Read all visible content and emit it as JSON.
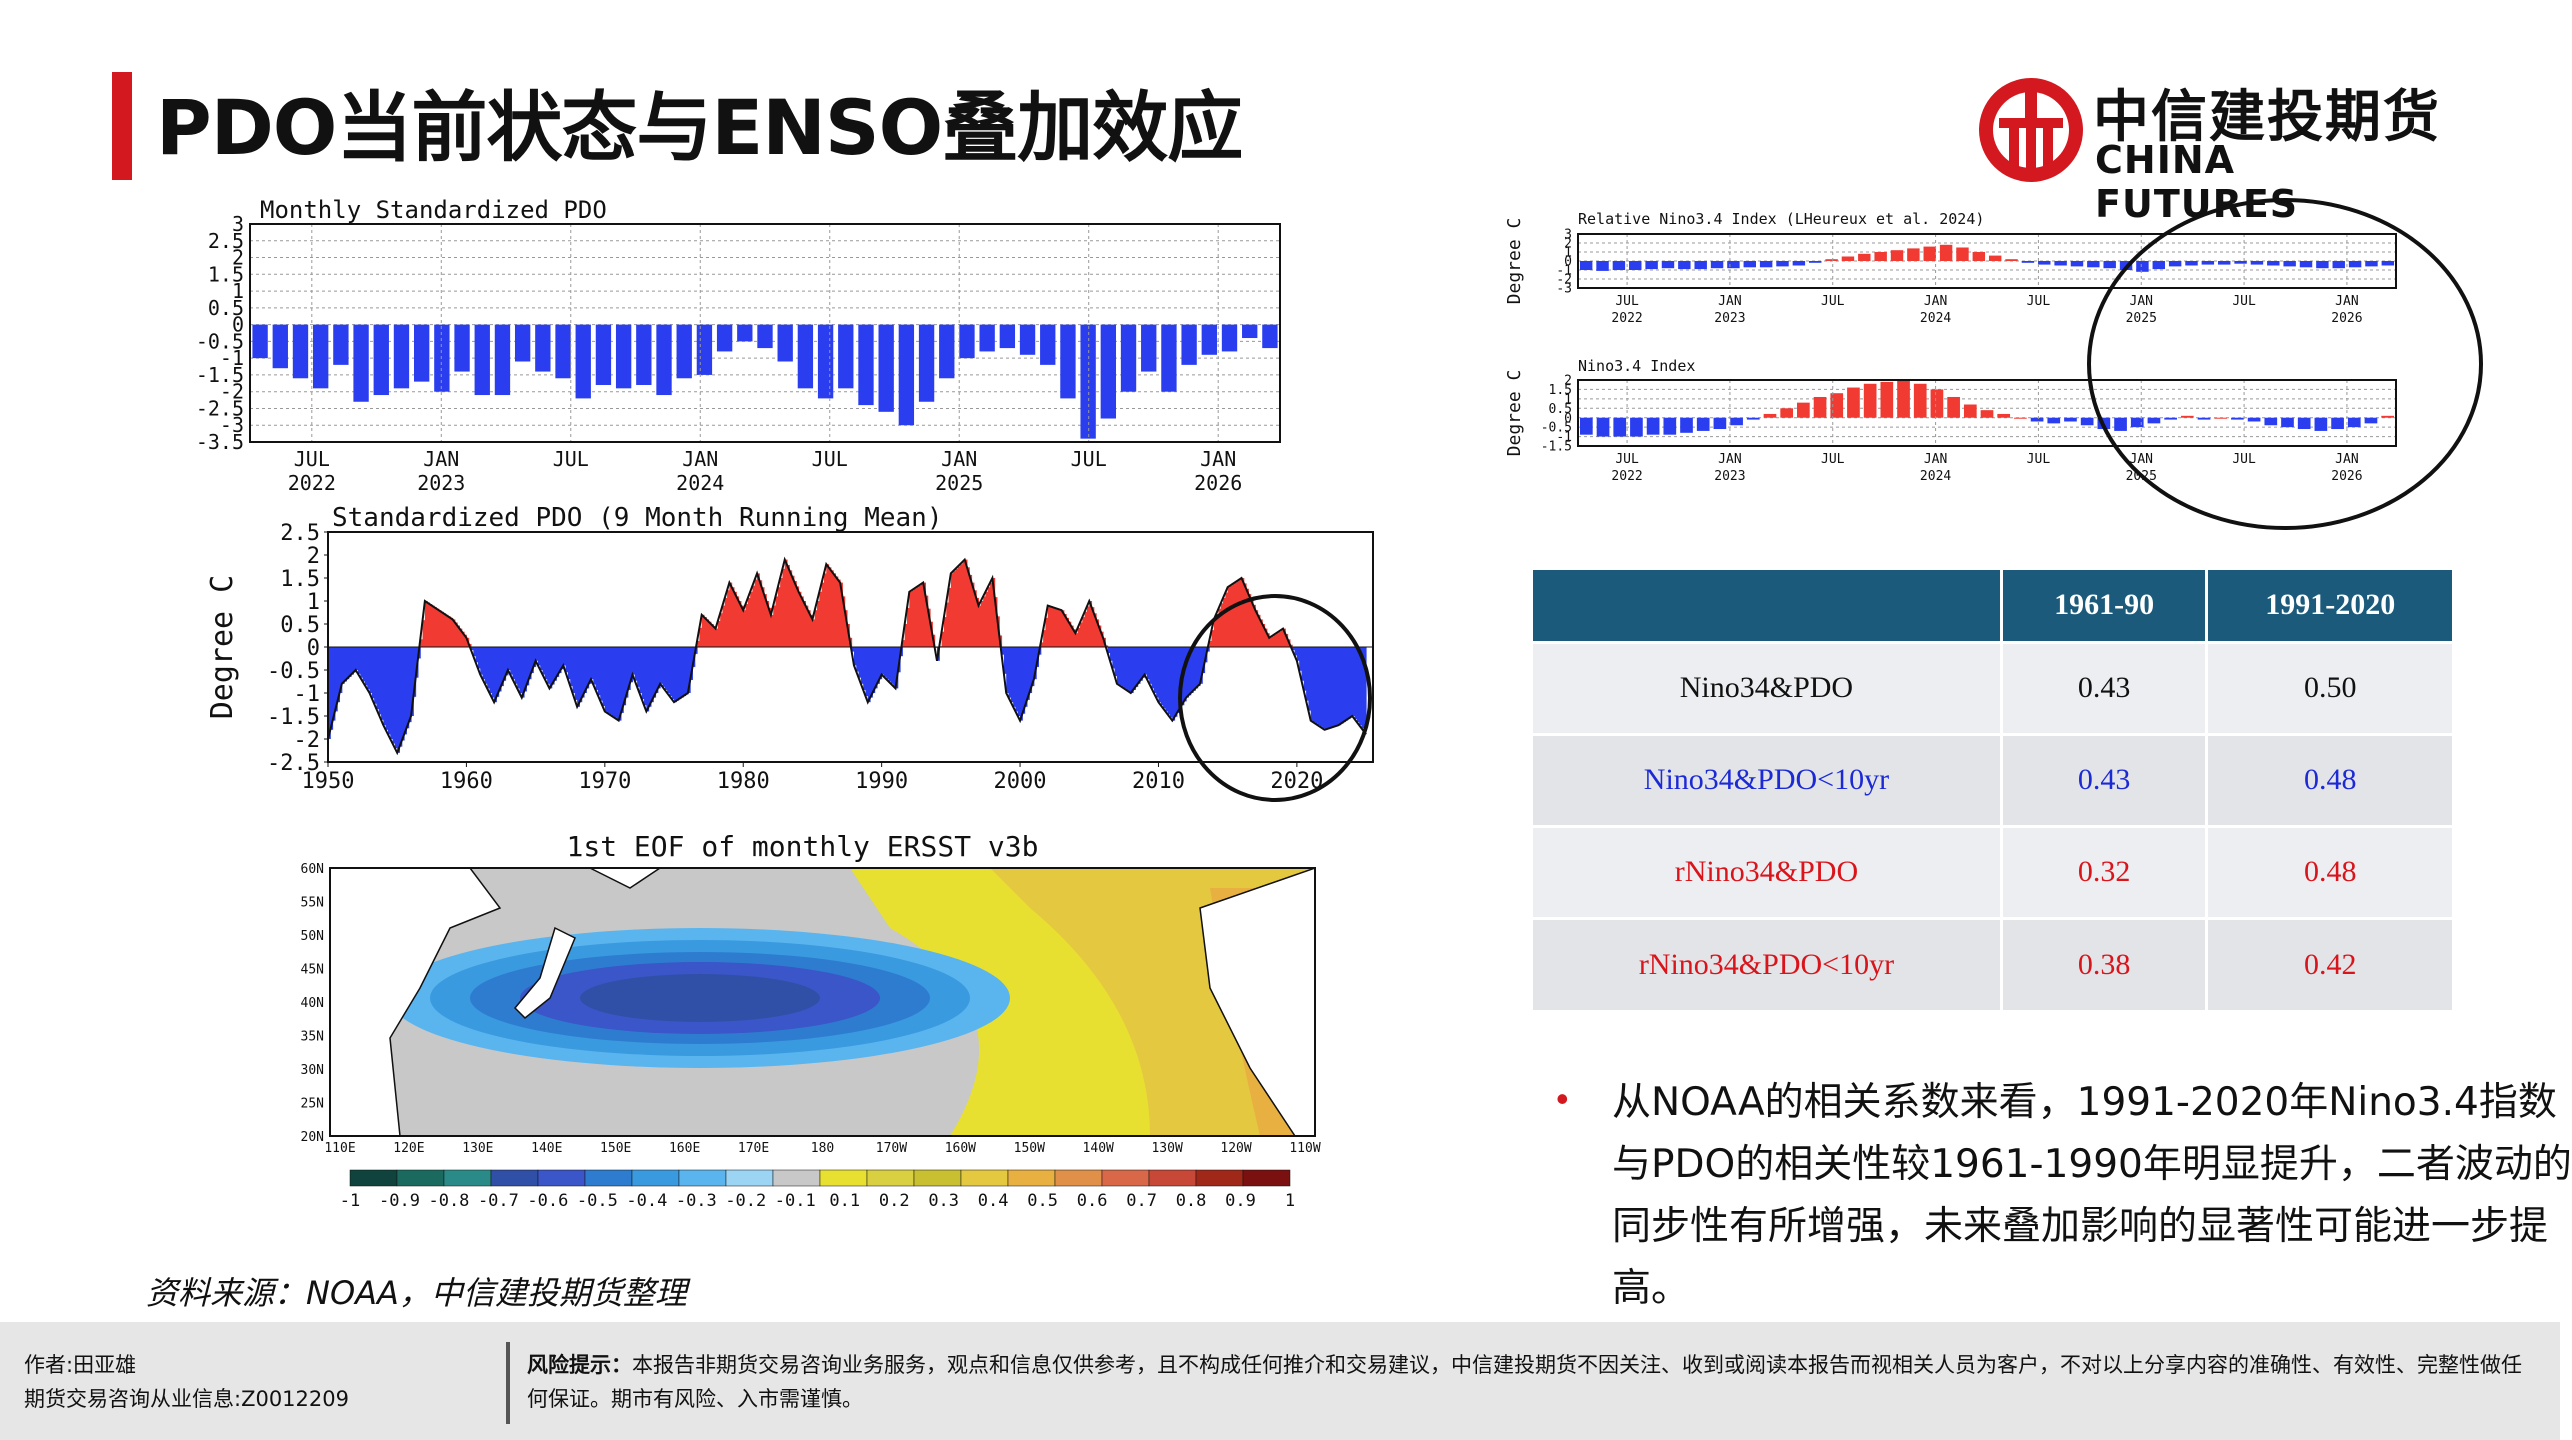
{
  "header": {
    "title": "PDO当前状态与ENSO叠加效应",
    "logo_cn": "中信建投期货",
    "logo_en": "CHINA FUTURES",
    "logo_icon": "citic-logo-icon",
    "accent_color": "#d3191f"
  },
  "chart_data": [
    {
      "type": "bar",
      "title": "Monthly Standardized PDO",
      "ylim": [
        -3.5,
        3
      ],
      "yticks": [
        "3",
        "2.5",
        "2",
        "1.5",
        "1",
        "0.5",
        "0",
        "-0.5",
        "-1",
        "-1.5",
        "-2",
        "-2.5",
        "-3",
        "-3.5"
      ],
      "xticks": [
        {
          "label": "JUL",
          "year": "2022"
        },
        {
          "label": "JAN",
          "year": "2023"
        },
        {
          "label": "JUL",
          "year": ""
        },
        {
          "label": "JAN",
          "year": "2024"
        },
        {
          "label": "JUL",
          "year": ""
        },
        {
          "label": "JAN",
          "year": "2025"
        },
        {
          "label": "JUL",
          "year": ""
        },
        {
          "label": "JAN",
          "year": "2026"
        }
      ],
      "values": [
        -1.0,
        -1.3,
        -1.6,
        -1.9,
        -1.2,
        -2.3,
        -2.1,
        -1.9,
        -1.7,
        -2.0,
        -1.4,
        -2.1,
        -2.1,
        -1.1,
        -1.4,
        -1.6,
        -2.2,
        -1.8,
        -1.9,
        -1.8,
        -2.1,
        -1.6,
        -1.5,
        -0.8,
        -0.5,
        -0.7,
        -1.1,
        -1.9,
        -2.2,
        -1.9,
        -2.4,
        -2.6,
        -3.0,
        -2.3,
        -1.6,
        -1.0,
        -0.8,
        -0.7,
        -0.9,
        -1.2,
        -2.2,
        -3.4,
        -2.8,
        -2.0,
        -1.4,
        -2.0,
        -1.2,
        -0.9,
        -0.8,
        -0.4,
        -0.7
      ],
      "bar_color": "#2a3ef0"
    },
    {
      "type": "area",
      "title": "Standardized PDO (9 Month Running Mean)",
      "ylabel": "Degree C",
      "ylim": [
        -2.5,
        2.5
      ],
      "yticks": [
        "2.5",
        "2",
        "1.5",
        "1",
        "0.5",
        "0",
        "-0.5",
        "-1",
        "-1.5",
        "-2",
        "-2.5"
      ],
      "xticks": [
        "1950",
        "1960",
        "1970",
        "1980",
        "1990",
        "2000",
        "2010",
        "2020"
      ],
      "x": [
        1950,
        1951,
        1952,
        1953,
        1954,
        1955,
        1956,
        1957,
        1958,
        1959,
        1960,
        1961,
        1962,
        1963,
        1964,
        1965,
        1966,
        1967,
        1968,
        1969,
        1970,
        1971,
        1972,
        1973,
        1974,
        1975,
        1976,
        1977,
        1978,
        1979,
        1980,
        1981,
        1982,
        1983,
        1984,
        1985,
        1986,
        1987,
        1988,
        1989,
        1990,
        1991,
        1992,
        1993,
        1994,
        1995,
        1996,
        1997,
        1998,
        1999,
        2000,
        2001,
        2002,
        2003,
        2004,
        2005,
        2006,
        2007,
        2008,
        2009,
        2010,
        2011,
        2012,
        2013,
        2014,
        2015,
        2016,
        2017,
        2018,
        2019,
        2020,
        2021,
        2022,
        2023,
        2024,
        2025
      ],
      "values": [
        -2.0,
        -0.8,
        -0.5,
        -1.0,
        -1.7,
        -2.3,
        -1.5,
        1.0,
        0.8,
        0.6,
        0.2,
        -0.6,
        -1.2,
        -0.5,
        -1.1,
        -0.3,
        -0.9,
        -0.4,
        -1.3,
        -0.7,
        -1.4,
        -1.6,
        -0.6,
        -1.4,
        -0.8,
        -1.2,
        -1.0,
        0.7,
        0.4,
        1.4,
        0.8,
        1.6,
        0.7,
        1.9,
        1.2,
        0.6,
        1.8,
        1.4,
        -0.4,
        -1.2,
        -0.6,
        -0.9,
        1.2,
        1.4,
        -0.3,
        1.6,
        1.9,
        0.9,
        1.5,
        -1.0,
        -1.6,
        -0.7,
        0.9,
        0.8,
        0.3,
        1.0,
        0.2,
        -0.8,
        -1.0,
        -0.6,
        -1.2,
        -1.6,
        -1.1,
        -0.8,
        0.6,
        1.3,
        1.5,
        0.8,
        0.2,
        0.4,
        -0.3,
        -1.6,
        -1.8,
        -1.7,
        -1.5,
        -1.9
      ],
      "positive_color": "#f03a32",
      "negative_color": "#2a3ef0"
    },
    {
      "type": "heatmap",
      "title": "1st EOF of monthly ERSST v3b",
      "lat_ticks": [
        "60N",
        "55N",
        "50N",
        "45N",
        "40N",
        "35N",
        "30N",
        "25N",
        "20N"
      ],
      "lon_ticks": [
        "110E",
        "120E",
        "130E",
        "140E",
        "150E",
        "160E",
        "170E",
        "180",
        "170W",
        "160W",
        "150W",
        "140W",
        "130W",
        "120W",
        "110W"
      ],
      "colorbar_labels": [
        "-1",
        "-0.9",
        "-0.8",
        "-0.7",
        "-0.6",
        "-0.5",
        "-0.4",
        "-0.3",
        "-0.2",
        "-0.1",
        "0.1",
        "0.2",
        "0.3",
        "0.4",
        "0.5",
        "0.6",
        "0.7",
        "0.8",
        "0.9",
        "1"
      ],
      "colorbar_colors": [
        "#10433d",
        "#1a6a60",
        "#2a8a88",
        "#3050a8",
        "#3a56c8",
        "#2e7ccf",
        "#3a9ae0",
        "#5ab5ee",
        "#9cd4f4",
        "#c8c8c8",
        "#e8e030",
        "#d8d040",
        "#c8c030",
        "#e4c840",
        "#e8b040",
        "#e09048",
        "#d86848",
        "#c84838",
        "#a02818",
        "#7a1010"
      ]
    },
    {
      "type": "bar",
      "title": "Relative Nino3.4 Index (LHeureux et al. 2024)",
      "ylabel": "Degree C",
      "ylim": [
        -3,
        3
      ],
      "yticks": [
        "3",
        "2",
        "1",
        "0",
        "-1",
        "-2",
        "-3"
      ],
      "xticks": [
        {
          "label": "JUL",
          "year": "2022"
        },
        {
          "label": "JAN",
          "year": "2023"
        },
        {
          "label": "JUL",
          "year": ""
        },
        {
          "label": "JAN",
          "year": "2024"
        },
        {
          "label": "JUL",
          "year": ""
        },
        {
          "label": "JAN",
          "year": "2025"
        },
        {
          "label": "JUL",
          "year": ""
        },
        {
          "label": "JAN",
          "year": "2026"
        }
      ],
      "values": [
        -1.0,
        -1.1,
        -1.0,
        -1.0,
        -0.9,
        -0.8,
        -0.9,
        -0.9,
        -0.8,
        -0.8,
        -0.7,
        -0.7,
        -0.6,
        -0.5,
        -0.2,
        0.2,
        0.5,
        0.8,
        1.0,
        1.2,
        1.4,
        1.6,
        1.8,
        1.5,
        1.0,
        0.6,
        0.2,
        -0.2,
        -0.4,
        -0.5,
        -0.6,
        -0.7,
        -0.8,
        -1.0,
        -1.2,
        -0.9,
        -0.6,
        -0.5,
        -0.4,
        -0.4,
        -0.3,
        -0.4,
        -0.5,
        -0.6,
        -0.7,
        -0.8,
        -0.8,
        -0.7,
        -0.6,
        -0.5
      ],
      "positive_color": "#f03a32",
      "negative_color": "#2a3ef0"
    },
    {
      "type": "bar",
      "title": "Nino3.4 Index",
      "ylabel": "Degree C",
      "ylim": [
        -1.5,
        2
      ],
      "yticks": [
        "2",
        "1.5",
        "1",
        "0.5",
        "0",
        "-0.5",
        "-1",
        "-1.5"
      ],
      "xticks": [
        {
          "label": "JUL",
          "year": "2022"
        },
        {
          "label": "JAN",
          "year": "2023"
        },
        {
          "label": "JUL",
          "year": ""
        },
        {
          "label": "JAN",
          "year": "2024"
        },
        {
          "label": "JUL",
          "year": ""
        },
        {
          "label": "JAN",
          "year": "2025"
        },
        {
          "label": "JUL",
          "year": ""
        },
        {
          "label": "JAN",
          "year": "2026"
        }
      ],
      "values": [
        -0.9,
        -1.0,
        -1.0,
        -1.0,
        -0.9,
        -0.9,
        -0.8,
        -0.7,
        -0.6,
        -0.4,
        -0.1,
        0.2,
        0.5,
        0.8,
        1.1,
        1.3,
        1.6,
        1.8,
        1.9,
        2.0,
        1.8,
        1.5,
        1.1,
        0.7,
        0.4,
        0.2,
        0.0,
        -0.2,
        -0.3,
        -0.2,
        -0.4,
        -0.6,
        -0.7,
        -0.5,
        -0.3,
        -0.1,
        0.1,
        -0.1,
        0.0,
        -0.1,
        -0.2,
        -0.4,
        -0.5,
        -0.6,
        -0.7,
        -0.6,
        -0.5,
        -0.3,
        0.1
      ],
      "positive_color": "#f03a32",
      "negative_color": "#2a3ef0"
    }
  ],
  "table": {
    "headers": [
      "",
      "1961-90",
      "1991-2020"
    ],
    "rows": [
      {
        "label": "Nino34&PDO",
        "v1": "0.43",
        "v2": "0.50",
        "color": "black"
      },
      {
        "label": "Nino34&PDO<10yr",
        "v1": "0.43",
        "v2": "0.48",
        "color": "blue"
      },
      {
        "label": "rNino34&PDO",
        "v1": "0.32",
        "v2": "0.48",
        "color": "red"
      },
      {
        "label": "rNino34&PDO<10yr",
        "v1": "0.38",
        "v2": "0.42",
        "color": "red"
      }
    ]
  },
  "bullet": {
    "text": "从NOAA的相关系数来看，1991-2020年Nino3.4指数与PDO的相关性较1961-1990年明显提升，二者波动的同步性有所增强，未来叠加影响的显著性可能进一步提高。"
  },
  "source": "资料来源：NOAA，中信建投期货整理",
  "footer": {
    "author_line1": "作者:田亚雄",
    "author_line2": "期货交易咨询从业信息:Z0012209",
    "risk_label": "风险提示：",
    "risk_text": "本报告非期货交易咨询业务服务，观点和信息仅供参考，且不构成任何推介和交易建议，中信建投期货不因关注、收到或阅读本报告而视相关人员为客户，不对以上分享内容的准确性、有效性、完整性做任何保证。期市有风险、入市需谨慎。"
  }
}
